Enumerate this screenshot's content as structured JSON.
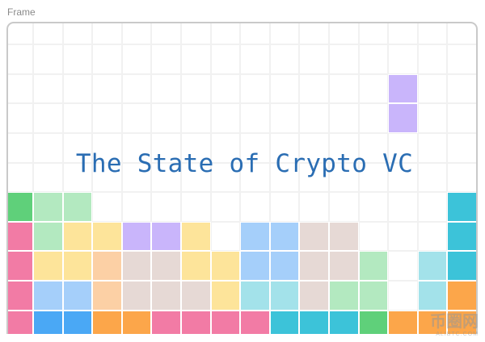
{
  "frame_label": "Frame",
  "title": "The State of Crypto VC",
  "palette": {
    "G": "#5fd07a",
    "l": "#b3e9c0",
    "C": "#3cc3d9",
    "K": "#f27ba5",
    "Y": "#fde49a",
    "P": "#c9b5fb",
    "B": "#a5cffa",
    "e": "#e6d9d5",
    "o": "#fcd0a5",
    "a": "#a3e2ea",
    "O": "#fca64a",
    "D": "#4aa8f5"
  },
  "grid_rows": [
    "................",
    "................",
    ".............P..",
    ".............P..",
    "................",
    "................",
    "Gll............C",
    "KlYYPPY.BBee...C",
    "KYYoeeYYBBeel.aC",
    "KBBoeeeYaaell.aO",
    "KDDOOKKKKCCCGOOO"
  ],
  "watermark": {
    "main": "币圈网",
    "sub": "ALIBTC.COM"
  }
}
